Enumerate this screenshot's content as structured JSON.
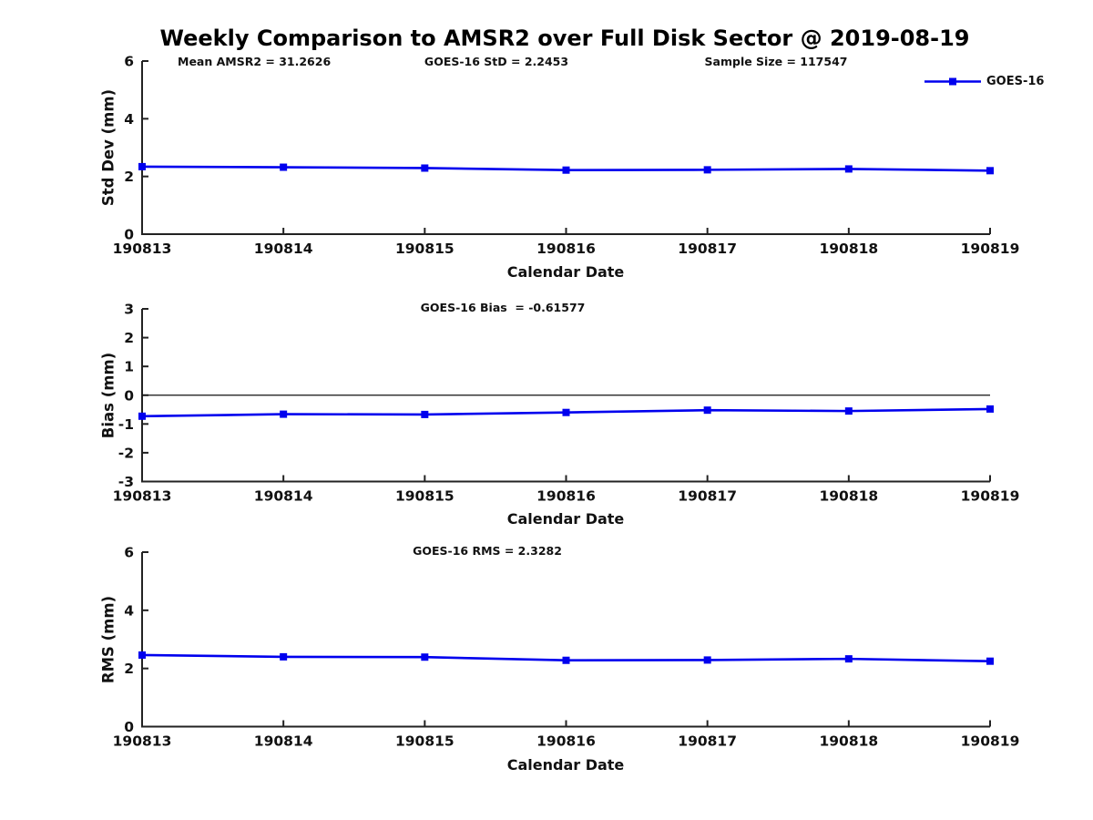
{
  "title": "Weekly Comparison to AMSR2 over Full Disk Sector @ 2019-08-19",
  "chart_data": [
    {
      "type": "line",
      "xlabel": "Calendar Date",
      "ylabel": "Std Dev (mm)",
      "x_categories": [
        "190813",
        "190814",
        "190815",
        "190816",
        "190817",
        "190818",
        "190819"
      ],
      "ylim": [
        0,
        6
      ],
      "yticks": [
        "0",
        "2",
        "4",
        "6"
      ],
      "grid": false,
      "zero_line": false,
      "annotations": [
        {
          "text": "Mean AMSR2 = 31.2626"
        },
        {
          "text": "GOES-16 StD = 2.2453"
        },
        {
          "text": "Sample Size = 117547"
        }
      ],
      "legend": {
        "label": "GOES-16",
        "position": "top-right"
      },
      "series": [
        {
          "name": "GOES-16",
          "color": "#0000EE",
          "marker": "square",
          "values": [
            2.34,
            2.32,
            2.29,
            2.22,
            2.23,
            2.26,
            2.2
          ]
        }
      ]
    },
    {
      "type": "line",
      "xlabel": "Calendar Date",
      "ylabel": "Bias (mm)",
      "x_categories": [
        "190813",
        "190814",
        "190815",
        "190816",
        "190817",
        "190818",
        "190819"
      ],
      "ylim": [
        -3,
        3
      ],
      "yticks": [
        "-3",
        "-2",
        "-1",
        "0",
        "1",
        "2",
        "3"
      ],
      "grid": false,
      "zero_line": true,
      "annotations": [
        {
          "text": "GOES-16 Bias  = -0.61577"
        }
      ],
      "series": [
        {
          "name": "GOES-16",
          "color": "#0000EE",
          "marker": "square",
          "values": [
            -0.73,
            -0.66,
            -0.67,
            -0.6,
            -0.52,
            -0.55,
            -0.48
          ]
        }
      ]
    },
    {
      "type": "line",
      "xlabel": "Calendar Date",
      "ylabel": "RMS (mm)",
      "x_categories": [
        "190813",
        "190814",
        "190815",
        "190816",
        "190817",
        "190818",
        "190819"
      ],
      "ylim": [
        0,
        6
      ],
      "yticks": [
        "0",
        "2",
        "4",
        "6"
      ],
      "grid": false,
      "zero_line": false,
      "annotations": [
        {
          "text": "GOES-16 RMS = 2.3282"
        }
      ],
      "series": [
        {
          "name": "GOES-16",
          "color": "#0000EE",
          "marker": "square",
          "values": [
            2.46,
            2.4,
            2.39,
            2.28,
            2.29,
            2.33,
            2.25
          ]
        }
      ]
    }
  ]
}
